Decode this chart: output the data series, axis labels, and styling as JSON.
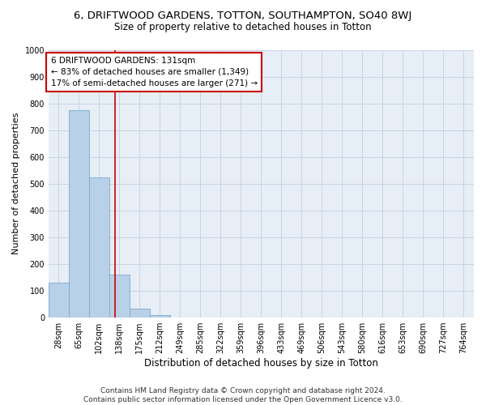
{
  "title_line1": "6, DRIFTWOOD GARDENS, TOTTON, SOUTHAMPTON, SO40 8WJ",
  "title_line2": "Size of property relative to detached houses in Totton",
  "xlabel": "Distribution of detached houses by size in Totton",
  "ylabel": "Number of detached properties",
  "bar_labels": [
    "28sqm",
    "65sqm",
    "102sqm",
    "138sqm",
    "175sqm",
    "212sqm",
    "249sqm",
    "285sqm",
    "322sqm",
    "359sqm",
    "396sqm",
    "433sqm",
    "469sqm",
    "506sqm",
    "543sqm",
    "580sqm",
    "616sqm",
    "653sqm",
    "690sqm",
    "727sqm",
    "764sqm"
  ],
  "bar_values": [
    130,
    775,
    525,
    160,
    35,
    10,
    0,
    0,
    0,
    0,
    0,
    0,
    0,
    0,
    0,
    0,
    0,
    0,
    0,
    0,
    0
  ],
  "bar_color": "#b8d0e8",
  "bar_edge_color": "#7aacd0",
  "grid_color": "#c8d4e4",
  "background_color": "#e8eef6",
  "annotation_box_color": "#cc0000",
  "annotation_text_line1": "6 DRIFTWOOD GARDENS: 131sqm",
  "annotation_text_line2": "← 83% of detached houses are smaller (1,349)",
  "annotation_text_line3": "17% of semi-detached houses are larger (271) →",
  "vline_color": "#cc0000",
  "ylim": [
    0,
    1000
  ],
  "yticks": [
    0,
    100,
    200,
    300,
    400,
    500,
    600,
    700,
    800,
    900,
    1000
  ],
  "footnote_line1": "Contains HM Land Registry data © Crown copyright and database right 2024.",
  "footnote_line2": "Contains public sector information licensed under the Open Government Licence v3.0.",
  "title_fontsize": 9.5,
  "subtitle_fontsize": 8.5,
  "annotation_fontsize": 7.5,
  "axis_label_fontsize": 8,
  "tick_fontsize": 7,
  "footnote_fontsize": 6.5
}
